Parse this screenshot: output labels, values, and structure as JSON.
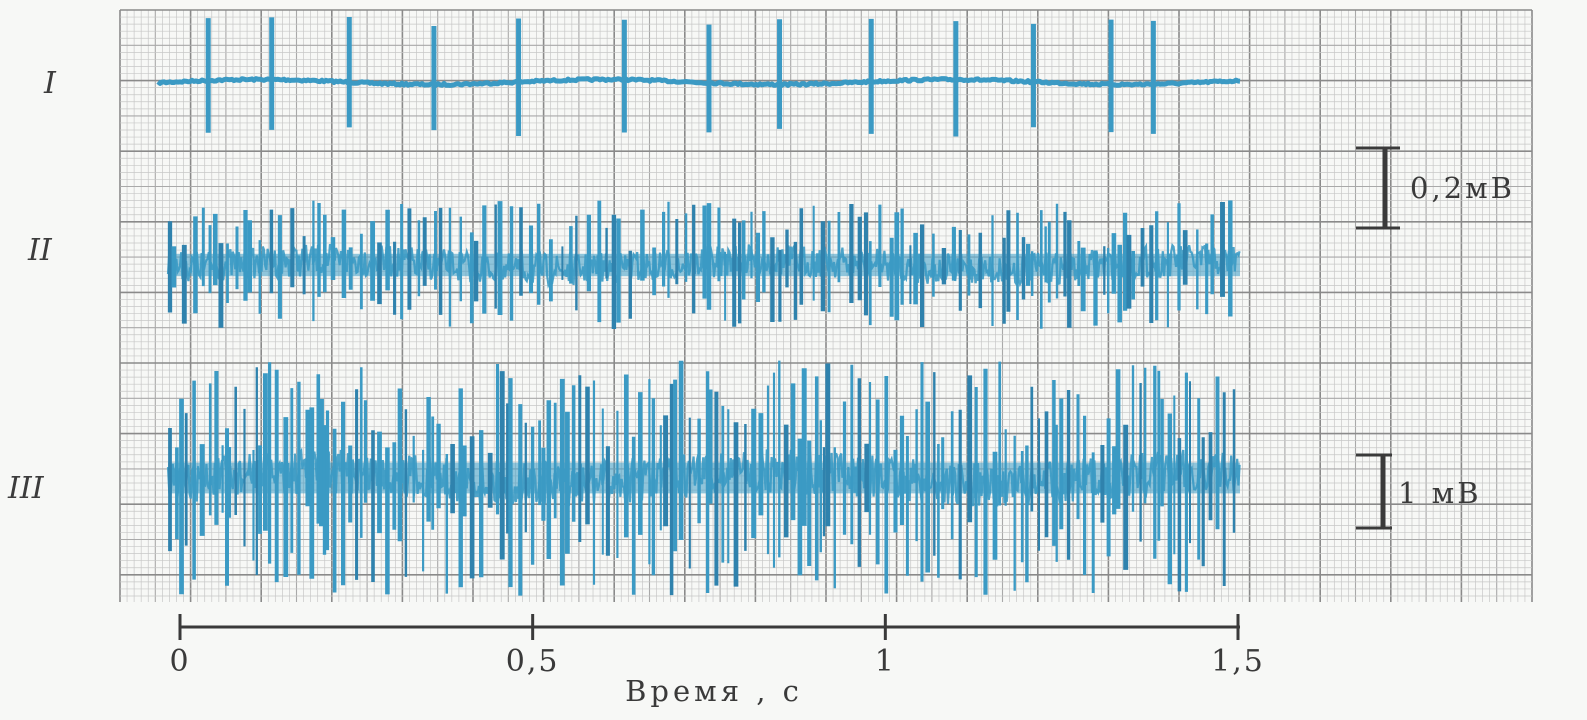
{
  "chart_data": {
    "type": "line",
    "xlabel": "Время , с",
    "ylabel": "",
    "xlim": [
      0,
      1.5
    ],
    "x_ticks": [
      0,
      0.5,
      1,
      1.5
    ],
    "x_tick_labels": [
      "0",
      "0,5",
      "1",
      "1,5"
    ],
    "grid": true,
    "legend": "none",
    "series": [
      {
        "name": "I",
        "kind": "regular spikes on a flat baseline",
        "spike_times": [
          0.04,
          0.13,
          0.24,
          0.36,
          0.48,
          0.63,
          0.75,
          0.85,
          0.98,
          1.1,
          1.21,
          1.32,
          1.38
        ],
        "scale": "0,2мВ"
      },
      {
        "name": "II",
        "kind": "dense noisy bursts",
        "x": [
          0,
          0.1,
          0.2,
          0.3,
          0.4,
          0.5,
          0.6,
          0.7,
          0.8,
          0.9,
          1.0,
          1.1,
          1.2,
          1.3,
          1.4,
          1.5
        ],
        "y": [
          0.02,
          0.03,
          -0.01,
          0.02,
          -0.02,
          0.04,
          0.01,
          -0.03,
          0.05,
          0.02,
          -0.01,
          0.03,
          0.06,
          -0.02,
          0.01,
          0.0
        ],
        "scale": "0,2мВ"
      },
      {
        "name": "III",
        "kind": "high-amplitude noisy bursts",
        "x": [
          0,
          0.1,
          0.2,
          0.3,
          0.4,
          0.5,
          0.6,
          0.7,
          0.8,
          0.9,
          1.0,
          1.1,
          1.2,
          1.3,
          1.4,
          1.5
        ],
        "y": [
          0.1,
          -0.3,
          0.4,
          -0.2,
          0.3,
          0.5,
          -0.4,
          0.2,
          0.6,
          -0.5,
          0.3,
          -0.2,
          0.4,
          -0.6,
          0.5,
          0.0
        ],
        "scale": "1 мВ"
      }
    ],
    "scale_bars": [
      "0,2мВ",
      "1 мВ"
    ]
  },
  "colors": {
    "trace": "#3b9ac4",
    "trace_dark": "#2f82ad",
    "grid_minor": "#c7c7c7",
    "grid_major": "#8a8a8a",
    "ink": "#3a3a3a",
    "paper": "#f7f8f6"
  }
}
